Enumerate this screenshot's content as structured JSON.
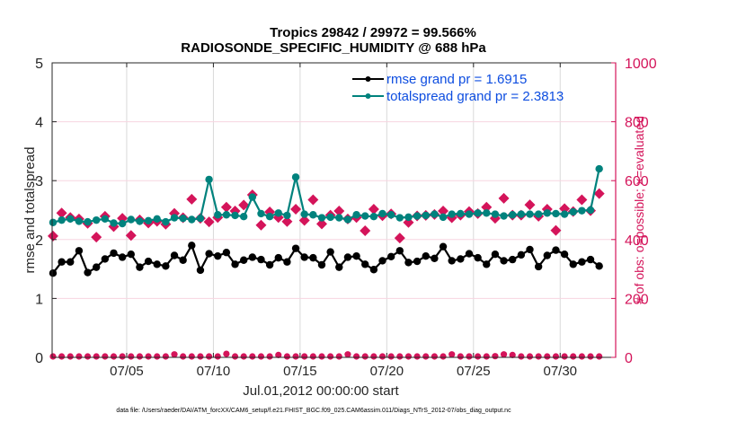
{
  "chart_data": {
    "type": "line",
    "title": "Tropics 29842 / 29972 = 99.566%",
    "subtitle": "RADIOSONDE_SPECIFIC_HUMIDITY @ 688 hPa",
    "xlabel": "Jul.01,2012 00:00:00 start",
    "ylabel_left": "rmse and totalspread",
    "ylabel_right": "# of obs: o=possible; ×=evaluated",
    "footnote": "data file: /Users/raeder/DAI/ATM_forcXX/CAM6_setup/f.e21.FHIST_BGC.f09_025.CAM6assim.011/Diags_NTrS_2012-07/obs_diag_output.nc",
    "grid": true,
    "legend_position": "top-right",
    "xlim": [
      0.7,
      33.2
    ],
    "ylim_left": [
      0,
      5
    ],
    "ylim_right": [
      0,
      1000
    ],
    "x_ticks": [
      {
        "day": 5,
        "label": "07/05"
      },
      {
        "day": 10,
        "label": "07/10"
      },
      {
        "day": 15,
        "label": "07/15"
      },
      {
        "day": 20,
        "label": "07/20"
      },
      {
        "day": 25,
        "label": "07/25"
      },
      {
        "day": 30,
        "label": "07/30"
      }
    ],
    "y_ticks_left": [
      "0",
      "1",
      "2",
      "3",
      "4",
      "5"
    ],
    "y_ticks_right": [
      "0",
      "200",
      "400",
      "600",
      "800",
      "1000"
    ],
    "x": [
      0.75,
      1.25,
      1.75,
      2.25,
      2.75,
      3.25,
      3.75,
      4.25,
      4.75,
      5.25,
      5.75,
      6.25,
      6.75,
      7.25,
      7.75,
      8.25,
      8.75,
      9.25,
      9.75,
      10.25,
      10.75,
      11.25,
      11.75,
      12.25,
      12.75,
      13.25,
      13.75,
      14.25,
      14.75,
      15.25,
      15.75,
      16.25,
      16.75,
      17.25,
      17.75,
      18.25,
      18.75,
      19.25,
      19.75,
      20.25,
      20.75,
      21.25,
      21.75,
      22.25,
      22.75,
      23.25,
      23.75,
      24.25,
      24.75,
      25.25,
      25.75,
      26.25,
      26.75,
      27.25,
      27.75,
      28.25,
      28.75,
      29.25,
      29.75,
      30.25,
      30.75,
      31.25,
      31.75,
      32.25
    ],
    "series": [
      {
        "name": "rmse grand pr = 1.6915",
        "axis": "left",
        "color": "#000000",
        "marker": "dot",
        "values": [
          1.43,
          1.62,
          1.62,
          1.81,
          1.44,
          1.53,
          1.67,
          1.77,
          1.7,
          1.75,
          1.53,
          1.63,
          1.58,
          1.55,
          1.73,
          1.65,
          1.9,
          1.48,
          1.76,
          1.72,
          1.78,
          1.58,
          1.65,
          1.7,
          1.66,
          1.57,
          1.69,
          1.62,
          1.85,
          1.7,
          1.69,
          1.57,
          1.79,
          1.53,
          1.7,
          1.72,
          1.58,
          1.49,
          1.64,
          1.71,
          1.81,
          1.61,
          1.63,
          1.72,
          1.68,
          1.88,
          1.64,
          1.67,
          1.76,
          1.69,
          1.58,
          1.75,
          1.64,
          1.66,
          1.74,
          1.83,
          1.54,
          1.73,
          1.82,
          1.75,
          1.58,
          1.62,
          1.66,
          1.55
        ]
      },
      {
        "name": "totalspread grand pr = 2.3813",
        "axis": "left",
        "color": "#00827d",
        "marker": "dot",
        "values": [
          2.29,
          2.33,
          2.35,
          2.31,
          2.3,
          2.33,
          2.35,
          2.28,
          2.27,
          2.34,
          2.31,
          2.32,
          2.35,
          2.3,
          2.37,
          2.36,
          2.34,
          2.36,
          3.02,
          2.42,
          2.42,
          2.41,
          2.39,
          2.72,
          2.44,
          2.39,
          2.45,
          2.41,
          3.06,
          2.43,
          2.42,
          2.37,
          2.38,
          2.37,
          2.34,
          2.42,
          2.4,
          2.39,
          2.44,
          2.42,
          2.37,
          2.38,
          2.4,
          2.41,
          2.43,
          2.38,
          2.43,
          2.44,
          2.43,
          2.45,
          2.45,
          2.43,
          2.4,
          2.42,
          2.43,
          2.43,
          2.43,
          2.45,
          2.44,
          2.43,
          2.47,
          2.49,
          2.5,
          3.2
        ]
      },
      {
        "name": "# obs possible",
        "axis": "right",
        "color": "#d4145a",
        "marker": "o",
        "values": [
          3,
          3,
          3,
          3,
          3,
          3,
          3,
          3,
          3,
          3,
          3,
          3,
          3,
          3,
          10,
          3,
          3,
          3,
          3,
          3,
          12,
          3,
          3,
          3,
          3,
          3,
          8,
          3,
          3,
          3,
          3,
          3,
          3,
          3,
          10,
          3,
          3,
          3,
          3,
          3,
          3,
          3,
          3,
          3,
          3,
          3,
          10,
          3,
          3,
          3,
          3,
          4,
          10,
          8,
          3,
          3,
          3,
          3,
          3,
          3,
          3,
          3,
          3,
          3
        ]
      },
      {
        "name": "# obs evaluated",
        "axis": "right",
        "color": "#d4145a",
        "marker": "x",
        "values": [
          412,
          490,
          475,
          470,
          455,
          408,
          479,
          444,
          472,
          414,
          467,
          456,
          462,
          452,
          489,
          474,
          537,
          472,
          460,
          475,
          510,
          497,
          517,
          552,
          449,
          494,
          475,
          461,
          503,
          465,
          535,
          453,
          483,
          497,
          470,
          475,
          430,
          503,
          481,
          487,
          405,
          458,
          480,
          482,
          485,
          497,
          474,
          483,
          495,
          488,
          510,
          472,
          540,
          483,
          483,
          518,
          479,
          503,
          431,
          505,
          495,
          535,
          498,
          556
        ]
      }
    ],
    "legend": [
      {
        "label": "rmse grand pr = 1.6915",
        "color": "#000000"
      },
      {
        "label": "totalspread grand pr = 2.3813",
        "color": "#00827d"
      }
    ]
  }
}
